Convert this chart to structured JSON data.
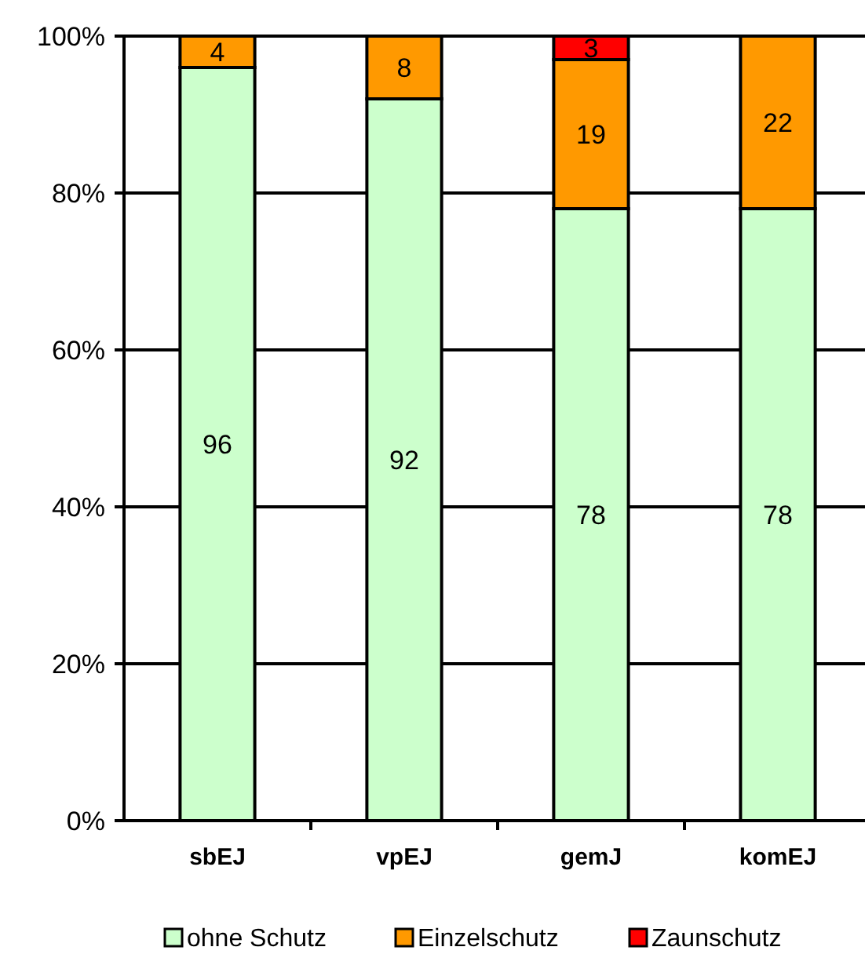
{
  "chart_data": {
    "type": "bar",
    "stacked": true,
    "categories": [
      "sbEJ",
      "vpEJ",
      "gemJ",
      "komEJ"
    ],
    "series": [
      {
        "name": "ohne Schutz",
        "color": "#ccffcc",
        "values": [
          96,
          92,
          78,
          78
        ]
      },
      {
        "name": "Einzelschutz",
        "color": "#ff9900",
        "values": [
          4,
          8,
          19,
          22
        ]
      },
      {
        "name": "Zaunschutz",
        "color": "#ff0000",
        "values": [
          null,
          null,
          3,
          null
        ]
      }
    ],
    "ylim": [
      0,
      100
    ],
    "yticks": [
      {
        "value": 0,
        "label": "0%"
      },
      {
        "value": 20,
        "label": "20%"
      },
      {
        "value": 40,
        "label": "40%"
      },
      {
        "value": 60,
        "label": "60%"
      },
      {
        "value": 80,
        "label": "80%"
      },
      {
        "value": 100,
        "label": "100%"
      }
    ],
    "grid": "y",
    "legend": "bottom",
    "data_labels": true
  }
}
